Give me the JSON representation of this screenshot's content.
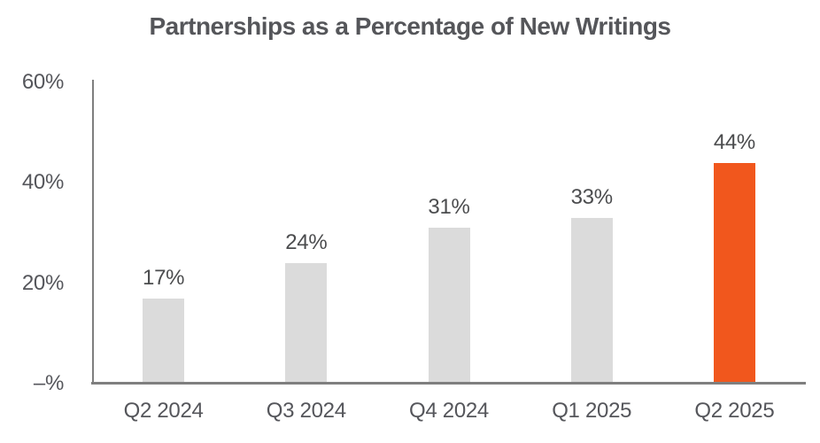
{
  "chart_data": {
    "type": "bar",
    "title": "Partnerships as a Percentage of New Writings",
    "categories": [
      "Q2 2024",
      "Q3 2024",
      "Q4 2024",
      "Q1 2025",
      "Q2 2025"
    ],
    "values": [
      17,
      24,
      31,
      33,
      44
    ],
    "value_labels": [
      "17%",
      "24%",
      "31%",
      "33%",
      "44%"
    ],
    "highlight_index": 4,
    "xlabel": "",
    "ylabel": "",
    "ylim": [
      0,
      60
    ],
    "yticks": [
      {
        "value": 60,
        "label": "60%"
      },
      {
        "value": 40,
        "label": "40%"
      },
      {
        "value": 20,
        "label": "20%"
      },
      {
        "value": 0,
        "label": "–%"
      }
    ],
    "grid": "off",
    "legend": "none",
    "colors": {
      "bar_default": "#DBDBDB",
      "bar_highlight": "#F1571D",
      "axis_line": "#7F7F7F",
      "title_text": "#55565A",
      "tick_text": "#55565B",
      "value_text": "#4B4C4E",
      "background": "#FFFFFF"
    }
  }
}
